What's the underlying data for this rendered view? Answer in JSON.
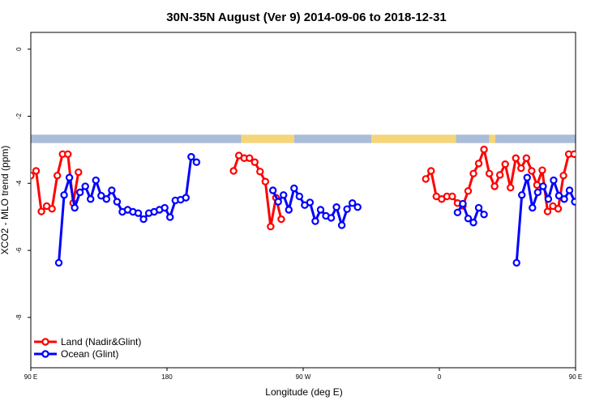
{
  "chart_data": {
    "type": "line",
    "title": "30N-35N August (Ver 9)   2014-09-06 to 2018-12-31",
    "xlabel": "Longitude (deg E)",
    "ylabel": "XCO2 - MLO trend (ppm)",
    "xlim": [
      90,
      450
    ],
    "ylim": [
      -9.5,
      0.5
    ],
    "x_ticks": [
      90,
      180,
      270,
      360,
      450,
      540
    ],
    "x_tick_labels": [
      "90 E",
      "180",
      "90 W",
      "0",
      "90 E",
      "180"
    ],
    "y_ticks": [
      0,
      -2,
      -4,
      -6,
      -8
    ],
    "y_tick_labels": [
      "0",
      "-2",
      "-4",
      "-6",
      "-8"
    ],
    "legend_position": "bottom-left",
    "colors": {
      "land_band": "#f5d57a",
      "ocean_band": "#a9bcd8"
    },
    "series": [
      {
        "name": "Land (Nadir&Glint)",
        "color": "#ff0000",
        "segments": [
          [
            [
              90,
              -3.77
            ],
            [
              93.5,
              -3.63
            ],
            [
              97,
              -4.84
            ],
            [
              100.5,
              -4.68
            ],
            [
              104,
              -4.76
            ],
            [
              107.5,
              -3.77
            ],
            [
              111,
              -3.13
            ],
            [
              114.5,
              -3.13
            ],
            [
              118,
              -4.59
            ],
            [
              121.5,
              -3.67
            ]
          ],
          [
            [
              224,
              -3.63
            ],
            [
              227.5,
              -3.17
            ],
            [
              231,
              -3.25
            ],
            [
              234.5,
              -3.25
            ],
            [
              238,
              -3.37
            ],
            [
              241.5,
              -3.65
            ],
            [
              245,
              -3.95
            ],
            [
              248.5,
              -5.29
            ],
            [
              252,
              -4.43
            ],
            [
              255.5,
              -5.07
            ]
          ],
          [
            [
              351,
              -3.87
            ],
            [
              354.5,
              -3.63
            ],
            [
              358,
              -4.39
            ],
            [
              361.5,
              -4.47
            ],
            [
              365,
              -4.39
            ],
            [
              368.5,
              -4.39
            ],
            [
              372,
              -4.59
            ],
            [
              375.5,
              -4.67
            ],
            [
              379,
              -4.23
            ],
            [
              382.5,
              -3.71
            ],
            [
              386,
              -3.41
            ],
            [
              389.5,
              -2.99
            ],
            [
              393,
              -3.71
            ],
            [
              396.5,
              -4.09
            ],
            [
              400,
              -3.75
            ],
            [
              403.5,
              -3.43
            ],
            [
              407,
              -4.13
            ],
            [
              410.5,
              -3.25
            ],
            [
              414,
              -3.55
            ],
            [
              417.5,
              -3.25
            ],
            [
              421,
              -3.63
            ],
            [
              424.5,
              -4.05
            ],
            [
              428,
              -3.61
            ],
            [
              431.5,
              -4.84
            ],
            [
              435,
              -4.68
            ],
            [
              438.5,
              -4.76
            ],
            [
              442,
              -3.77
            ],
            [
              445.5,
              -3.13
            ],
            [
              449,
              -3.13
            ]
          ]
        ]
      },
      {
        "name": "Ocean (Glint)",
        "color": "#0000ff",
        "segments": [
          [
            [
              108.5,
              -6.37
            ],
            [
              112,
              -4.35
            ],
            [
              115.5,
              -3.83
            ],
            [
              119,
              -4.73
            ],
            [
              122.5,
              -4.27
            ],
            [
              126,
              -4.09
            ],
            [
              129.5,
              -4.47
            ],
            [
              133,
              -3.91
            ],
            [
              136.5,
              -4.37
            ],
            [
              140,
              -4.47
            ],
            [
              143.5,
              -4.21
            ],
            [
              147,
              -4.55
            ],
            [
              150.5,
              -4.85
            ],
            [
              154,
              -4.79
            ],
            [
              157.5,
              -4.85
            ],
            [
              161,
              -4.89
            ],
            [
              164.5,
              -5.07
            ],
            [
              168,
              -4.89
            ],
            [
              171.5,
              -4.85
            ],
            [
              175,
              -4.79
            ],
            [
              178.5,
              -4.73
            ],
            [
              182,
              -5.01
            ],
            [
              185.5,
              -4.51
            ],
            [
              189,
              -4.49
            ],
            [
              192.5,
              -4.43
            ],
            [
              196,
              -3.21
            ],
            [
              199.5,
              -3.37
            ]
          ],
          [
            [
              250,
              -4.21
            ],
            [
              253.5,
              -4.55
            ],
            [
              257,
              -4.35
            ],
            [
              260.5,
              -4.79
            ],
            [
              264,
              -4.15
            ],
            [
              267.5,
              -4.39
            ],
            [
              271,
              -4.65
            ],
            [
              274.5,
              -4.57
            ],
            [
              278,
              -5.13
            ],
            [
              281.5,
              -4.79
            ],
            [
              285,
              -4.97
            ],
            [
              288.5,
              -5.03
            ],
            [
              292,
              -4.71
            ],
            [
              295.5,
              -5.25
            ],
            [
              299,
              -4.77
            ],
            [
              302.5,
              -4.59
            ],
            [
              306,
              -4.71
            ]
          ],
          [
            [
              372,
              -4.87
            ],
            [
              375.5,
              -4.61
            ],
            [
              379,
              -5.05
            ],
            [
              382.5,
              -5.17
            ],
            [
              386,
              -4.73
            ],
            [
              389.5,
              -4.93
            ]
          ],
          [
            [
              411,
              -6.37
            ],
            [
              414.5,
              -4.35
            ],
            [
              418,
              -3.83
            ],
            [
              421.5,
              -4.73
            ],
            [
              425,
              -4.27
            ],
            [
              428.5,
              -4.09
            ],
            [
              432,
              -4.47
            ],
            [
              435.5,
              -3.91
            ],
            [
              439,
              -4.37
            ],
            [
              442.5,
              -4.47
            ],
            [
              446,
              -4.21
            ],
            [
              449.5,
              -4.55
            ],
            [
              453,
              -4.85
            ]
          ]
        ]
      }
    ],
    "surface_band": [
      {
        "type": "ocean",
        "from": 90,
        "to": 229
      },
      {
        "type": "land",
        "from": 229,
        "to": 264
      },
      {
        "type": "ocean",
        "from": 264,
        "to": 315
      },
      {
        "type": "land",
        "from": 315,
        "to": 371
      },
      {
        "type": "ocean",
        "from": 371,
        "to": 393
      },
      {
        "type": "land",
        "from": 393,
        "to": 397
      },
      {
        "type": "ocean",
        "from": 397,
        "to": 450
      }
    ]
  }
}
